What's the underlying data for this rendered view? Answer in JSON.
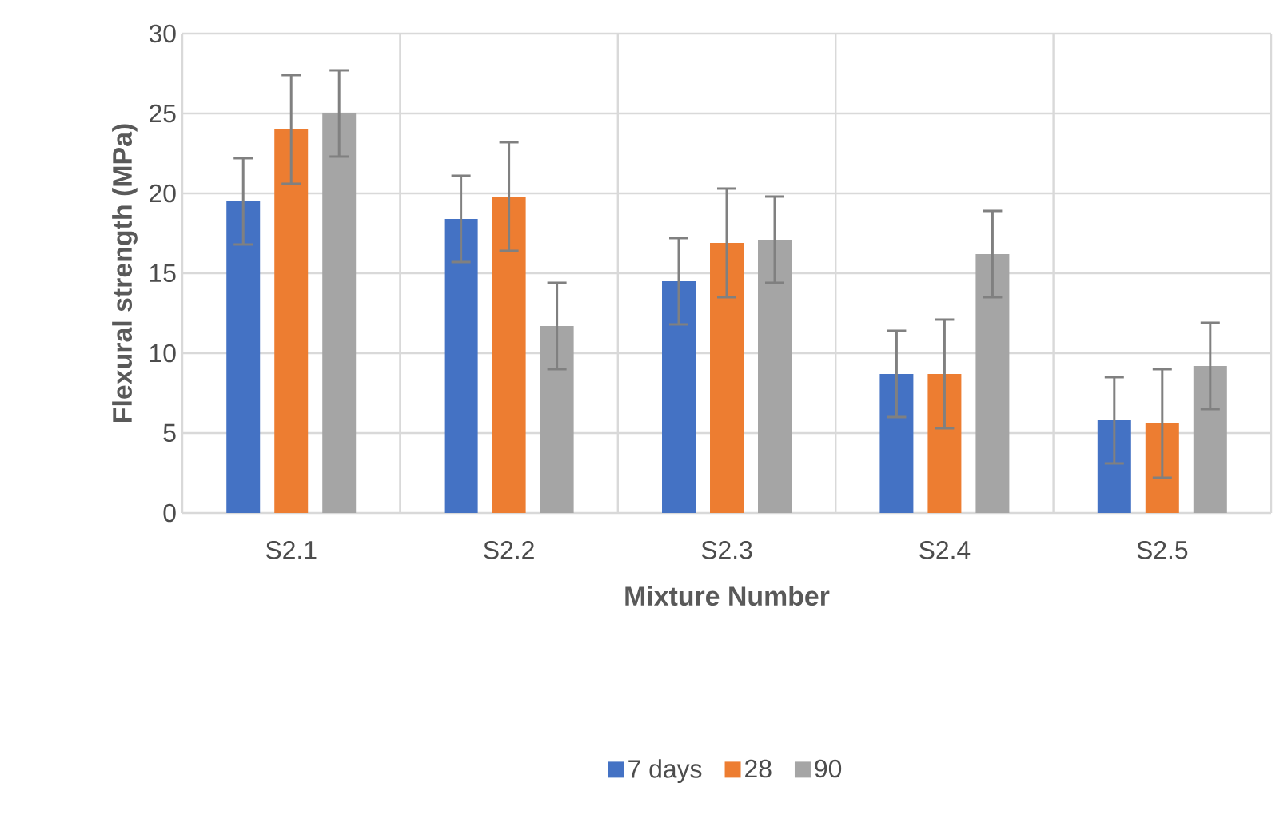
{
  "chart_data": {
    "type": "bar",
    "xlabel": "Mixture Number",
    "ylabel": "Flexural strength (MPa)",
    "categories": [
      "S2.1",
      "S2.2",
      "S2.3",
      "S2.4",
      "S2.5"
    ],
    "series": [
      {
        "name": "7 days",
        "color": "#4472c4",
        "values": [
          19.5,
          18.4,
          14.5,
          8.7,
          5.8
        ],
        "errors": [
          2.7,
          2.7,
          2.7,
          2.7,
          2.7
        ]
      },
      {
        "name": "28",
        "color": "#ed7d31",
        "values": [
          24.0,
          19.8,
          16.9,
          8.7,
          5.6
        ],
        "errors": [
          3.4,
          3.4,
          3.4,
          3.4,
          3.4
        ]
      },
      {
        "name": "90",
        "color": "#a5a5a5",
        "values": [
          25.0,
          11.7,
          17.1,
          16.2,
          9.2
        ],
        "errors": [
          2.7,
          2.7,
          2.7,
          2.7,
          2.7
        ]
      }
    ],
    "ylim": [
      0,
      30
    ],
    "yticks": [
      0,
      5,
      10,
      15,
      20,
      25,
      30
    ],
    "grid": true,
    "legend": "bottom"
  }
}
